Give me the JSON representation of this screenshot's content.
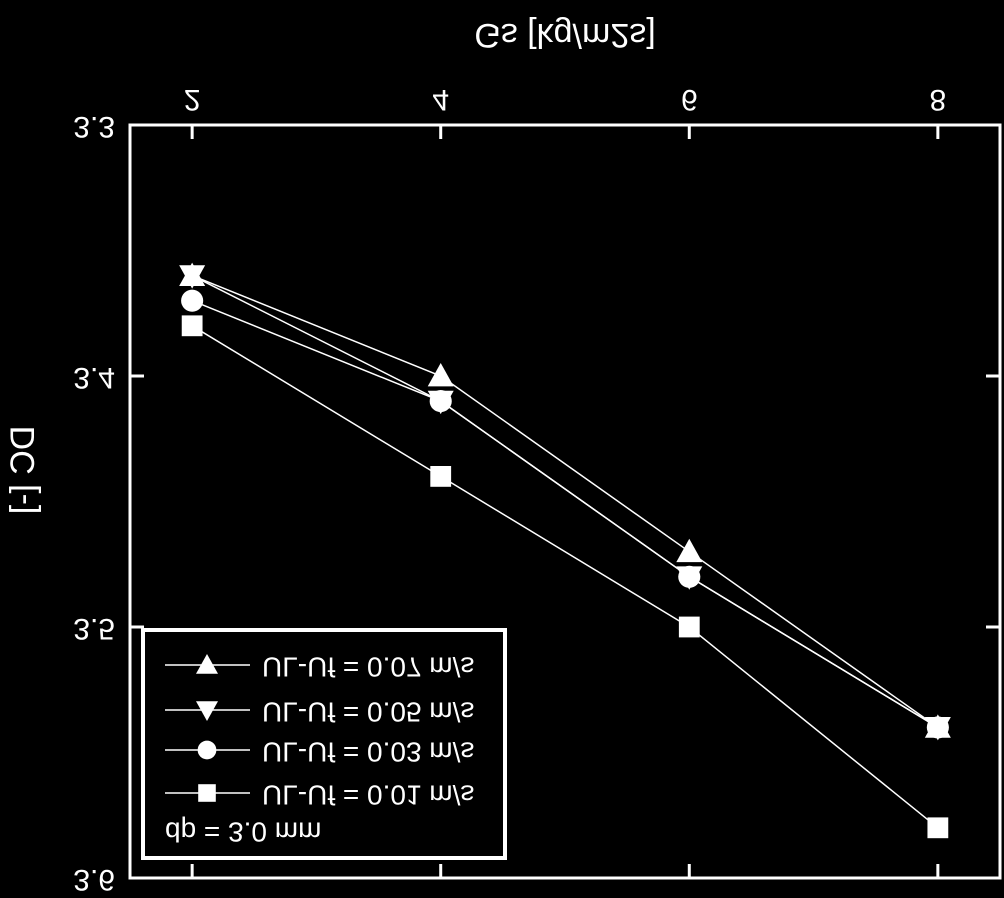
{
  "chart_data": {
    "type": "line",
    "x_label": "Gs [kg/m2s]",
    "y_label": "DC [-]",
    "annotation": "dp = 3.0 mm",
    "x": [
      2,
      4,
      6,
      8
    ],
    "xlim": [
      1.5,
      8.5
    ],
    "xticks": [
      2,
      4,
      6,
      8
    ],
    "ylim": [
      3.3,
      3.6
    ],
    "yticks": [
      3.3,
      3.4,
      3.5,
      3.6
    ],
    "background": "#000000",
    "series": [
      {
        "name": "UL-Uf = 0.07 m/s",
        "color": "#ffffff",
        "marker": "triangle-up",
        "values": [
          3.36,
          3.4,
          3.47,
          3.54
        ]
      },
      {
        "name": "UL-Uf = 0.05 m/s",
        "color": "#ffffff",
        "marker": "triangle-down",
        "values": [
          3.36,
          3.41,
          3.48,
          3.54
        ]
      },
      {
        "name": "UL-Uf = 0.03 m/s",
        "color": "#ffffff",
        "marker": "circle",
        "values": [
          3.37,
          3.41,
          3.48,
          3.54
        ]
      },
      {
        "name": "UL-Uf = 0.01 m/s",
        "color": "#ffffff",
        "marker": "square",
        "values": [
          3.38,
          3.44,
          3.5,
          3.58
        ]
      }
    ]
  }
}
